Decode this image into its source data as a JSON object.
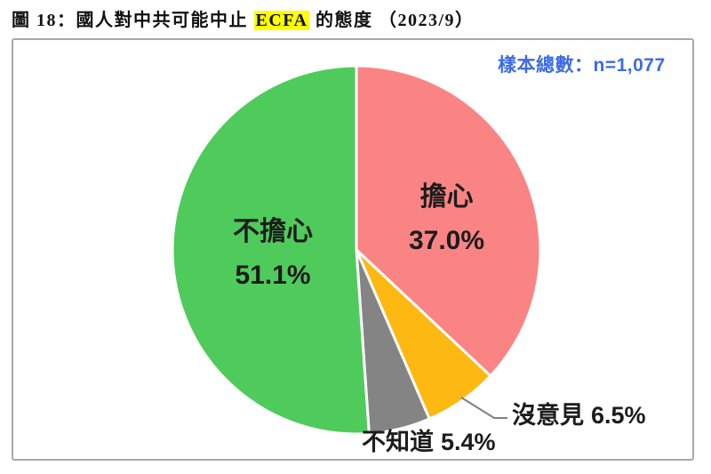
{
  "figure": {
    "number_label": "圖 18：",
    "title_prefix": "圖 18：國人對中共可能中止 ",
    "title_highlight": "ECFA",
    "title_suffix": " 的態度 （2023/9）",
    "sample_note": "樣本總數：n=1,077"
  },
  "chart_data": {
    "type": "pie",
    "title": "圖 18：國人對中共可能中止 ECFA 的態度 （2023/9）",
    "sample_size_label": "樣本總數：n=1,077",
    "sample_n": 1077,
    "start_angle_deg": 0,
    "direction": "clockwise",
    "legend_position": "none",
    "slices": [
      {
        "label": "擔心",
        "value": 37.0,
        "display_value": "37.0%",
        "color": "#fa8484",
        "label_placement": "inside"
      },
      {
        "label": "沒意見",
        "value": 6.5,
        "display_value": "6.5%",
        "color": "#fdb811",
        "label_placement": "outside-right"
      },
      {
        "label": "不知道",
        "value": 5.4,
        "display_value": "5.4%",
        "color": "#848484",
        "label_placement": "outside-bottom"
      },
      {
        "label": "不擔心",
        "value": 51.1,
        "display_value": "51.1%",
        "color": "#4fcb5b",
        "label_placement": "inside"
      }
    ],
    "colors": {
      "slice_border": "#ffffff",
      "leader_line": "#808080",
      "panel_border": "#a9a9a9",
      "note_text": "#3d6be4",
      "title_highlight_bg": "#ffff00",
      "label_text": "#1c1c1c"
    }
  }
}
